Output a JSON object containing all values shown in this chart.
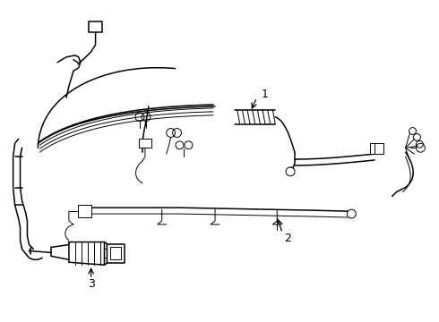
{
  "background_color": "#ffffff",
  "line_color": "#000000",
  "figsize": [
    4.9,
    3.6
  ],
  "dpi": 100,
  "lw_main": 1.1,
  "lw_thin": 0.7
}
